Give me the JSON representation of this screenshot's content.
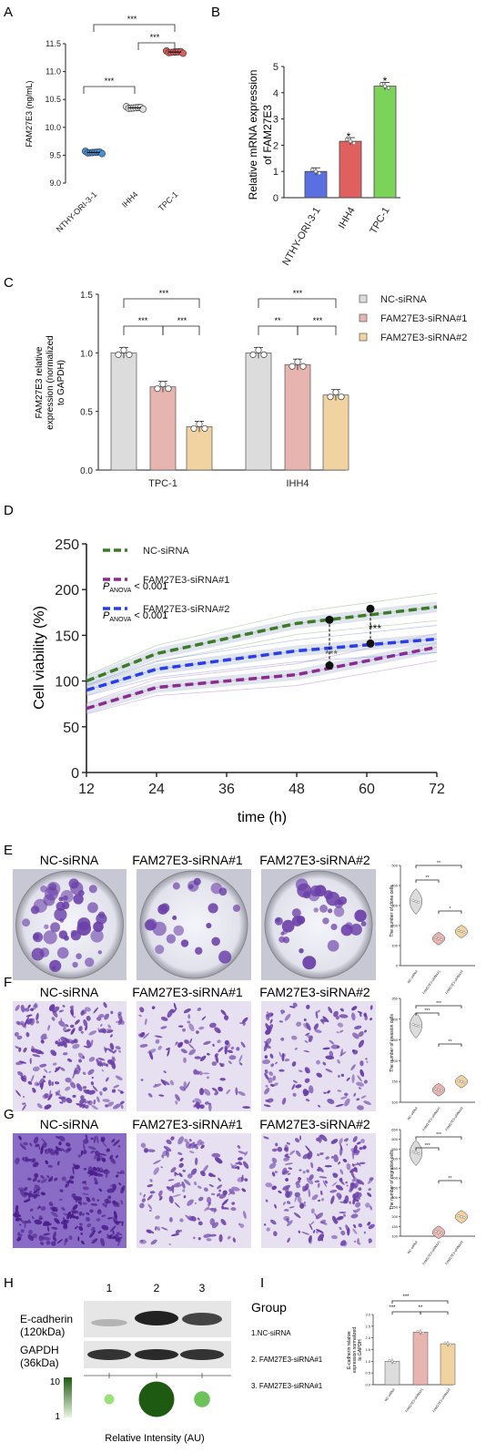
{
  "panels": {
    "A": {
      "letter": "A",
      "ylabel": "FAM27E3 (ng/mL)",
      "sig": "***"
    },
    "B": {
      "letter": "B",
      "ylabel_line1": "Relative mRNA expression",
      "ylabel_line2": "of FAM27E3",
      "sig": "*"
    },
    "C": {
      "letter": "C",
      "ylabel_line1": "FAM27E3 relative",
      "ylabel_line2": "expression (normalized",
      "ylabel_line3": "to GAPDH)"
    },
    "D": {
      "letter": "D",
      "ylabel": "Cell viability (%)",
      "xlabel": "time (h)",
      "anova_1": "P",
      "anova_sub": "ANOVA",
      "anova_rest": " < 0.001",
      "sig": "***"
    },
    "E": {
      "letter": "E",
      "ylabel": "The number of clone cells"
    },
    "F": {
      "letter": "F",
      "ylabel": "The number of invasion cells"
    },
    "G": {
      "letter": "G",
      "ylabel": "The number of migration cells"
    },
    "H": {
      "letter": "H",
      "lane_1": "1",
      "lane_2": "2",
      "lane_3": "3",
      "ecad_1": "E-cadherin",
      "ecad_2": "(120kDa)",
      "gapdh_1": "GAPDH",
      "gapdh_2": "(36kDa)",
      "scale_max": "10",
      "scale_min": "1",
      "intensity_label": "Relative Intensity (AU)",
      "group_title": "Group",
      "group_1": "1.NC-siRNA",
      "group_2": "2. FAM27E3-siRNA#1",
      "group_3": "3. FAM27E3-siRNA#1"
    },
    "I": {
      "letter": "I",
      "ylabel_1": "E-cadherin relative",
      "ylabel_2": "expression normalized",
      "ylabel_3": "to GAPDH"
    }
  },
  "image_titles": [
    "NC-siRNA",
    "FAM27E3-siRNA#1",
    "FAM27E3-siRNA#2"
  ],
  "sig_marks": {
    "s1": "*",
    "s2": "**",
    "s3": "***"
  },
  "colors": {
    "nc": "#dcdcdc",
    "si1": "#e8b4b0",
    "si2": "#f0d3a0",
    "b_blue": "#5a6fe0",
    "b_red": "#e06060",
    "b_green": "#7cd35a",
    "d_green": "#3d7a28",
    "d_purple": "#8b2a8f",
    "d_blue": "#2a3ee8",
    "stain": "#6a3fa8"
  },
  "chart_data": [
    {
      "panel": "A",
      "type": "scatter",
      "categories": [
        "NTHY-ORI-3-1",
        "IHH4",
        "TPC-1"
      ],
      "values": [
        9.55,
        10.35,
        11.35
      ],
      "ylabel": "FAM27E3 (ng/mL)",
      "ylim": [
        9.0,
        11.5
      ],
      "yticks": [
        9.0,
        9.5,
        10.0,
        10.5,
        11.0,
        11.5
      ]
    },
    {
      "panel": "B",
      "type": "bar",
      "categories": [
        "NTHY-ORI-3-1",
        "IHH4",
        "TPC-1"
      ],
      "values": [
        1.0,
        2.15,
        4.25
      ],
      "ylabel": "Relative mRNA expression of FAM27E3",
      "ylim": [
        0,
        5
      ],
      "yticks": [
        0,
        1,
        2,
        3,
        4,
        5
      ]
    },
    {
      "panel": "C",
      "type": "bar",
      "categories": [
        "TPC-1",
        "IHH4"
      ],
      "series": [
        {
          "name": "NC-siRNA",
          "values": [
            1.0,
            1.0
          ]
        },
        {
          "name": "FAM27E3-siRNA#1",
          "values": [
            0.71,
            0.9
          ]
        },
        {
          "name": "FAM27E3-siRNA#2",
          "values": [
            0.37,
            0.64
          ]
        }
      ],
      "ylim": [
        0,
        1.5
      ],
      "yticks": [
        "0.0",
        "0.5",
        "1.0",
        "1.5"
      ]
    },
    {
      "panel": "D",
      "type": "line",
      "x": [
        12,
        24,
        48,
        72
      ],
      "series": [
        {
          "name": "NC-siRNA",
          "values": [
            100,
            130,
            163,
            181
          ]
        },
        {
          "name": "FAM27E3-siRNA#1",
          "values": [
            70,
            93,
            107,
            137
          ]
        },
        {
          "name": "FAM27E3-siRNA#2",
          "values": [
            90,
            113,
            133,
            146
          ]
        }
      ],
      "xlabel": "time (h)",
      "ylabel": "Cell viability (%)",
      "xlim": [
        12,
        72
      ],
      "ylim": [
        0,
        250
      ],
      "xticks": [
        12,
        24,
        36,
        48,
        60,
        72
      ],
      "yticks": [
        0,
        50,
        100,
        150,
        200,
        250
      ]
    },
    {
      "panel": "E",
      "type": "scatter",
      "categories": [
        "NC-siRNA",
        "FAM27E3-siRNA#1",
        "FAM27E3-siRNA#2"
      ],
      "values": [
        320,
        135,
        170
      ],
      "ylim": [
        0,
        500
      ],
      "yticks": [
        0,
        100,
        200,
        300,
        400,
        500
      ]
    },
    {
      "panel": "F",
      "type": "scatter",
      "categories": [
        "NC-siRNA",
        "FAM27E3-siRNA#1",
        "FAM27E3-siRNA#2"
      ],
      "values": [
        285,
        130,
        150
      ],
      "ylim": [
        100,
        350
      ],
      "yticks": [
        100,
        150,
        200,
        250,
        300,
        350
      ]
    },
    {
      "panel": "G",
      "type": "scatter",
      "categories": [
        "NC-siRNA",
        "FAM27E3-siRNA#1",
        "FAM27E3-siRNA#2"
      ],
      "values": [
        530,
        120,
        200
      ],
      "ylim": [
        100,
        650
      ],
      "yticks": [
        100,
        150,
        200,
        250,
        300,
        350,
        400,
        450,
        500,
        550,
        600,
        650
      ]
    },
    {
      "panel": "H",
      "type": "scatter",
      "categories": [
        "1",
        "2",
        "3"
      ],
      "values": [
        1.5,
        10,
        3.5
      ],
      "ylim": [
        1,
        10
      ]
    },
    {
      "panel": "I",
      "type": "bar",
      "categories": [
        "NC-siRNA",
        "FAM27E3-siRNA#1",
        "FAM27E3-siRNA#2"
      ],
      "values": [
        1.0,
        2.25,
        1.75
      ],
      "ylim": [
        0,
        3.0
      ],
      "yticks": [
        "0.0",
        "0.5",
        "1.0",
        "1.5",
        "2.0",
        "2.5",
        "3.0"
      ]
    }
  ]
}
